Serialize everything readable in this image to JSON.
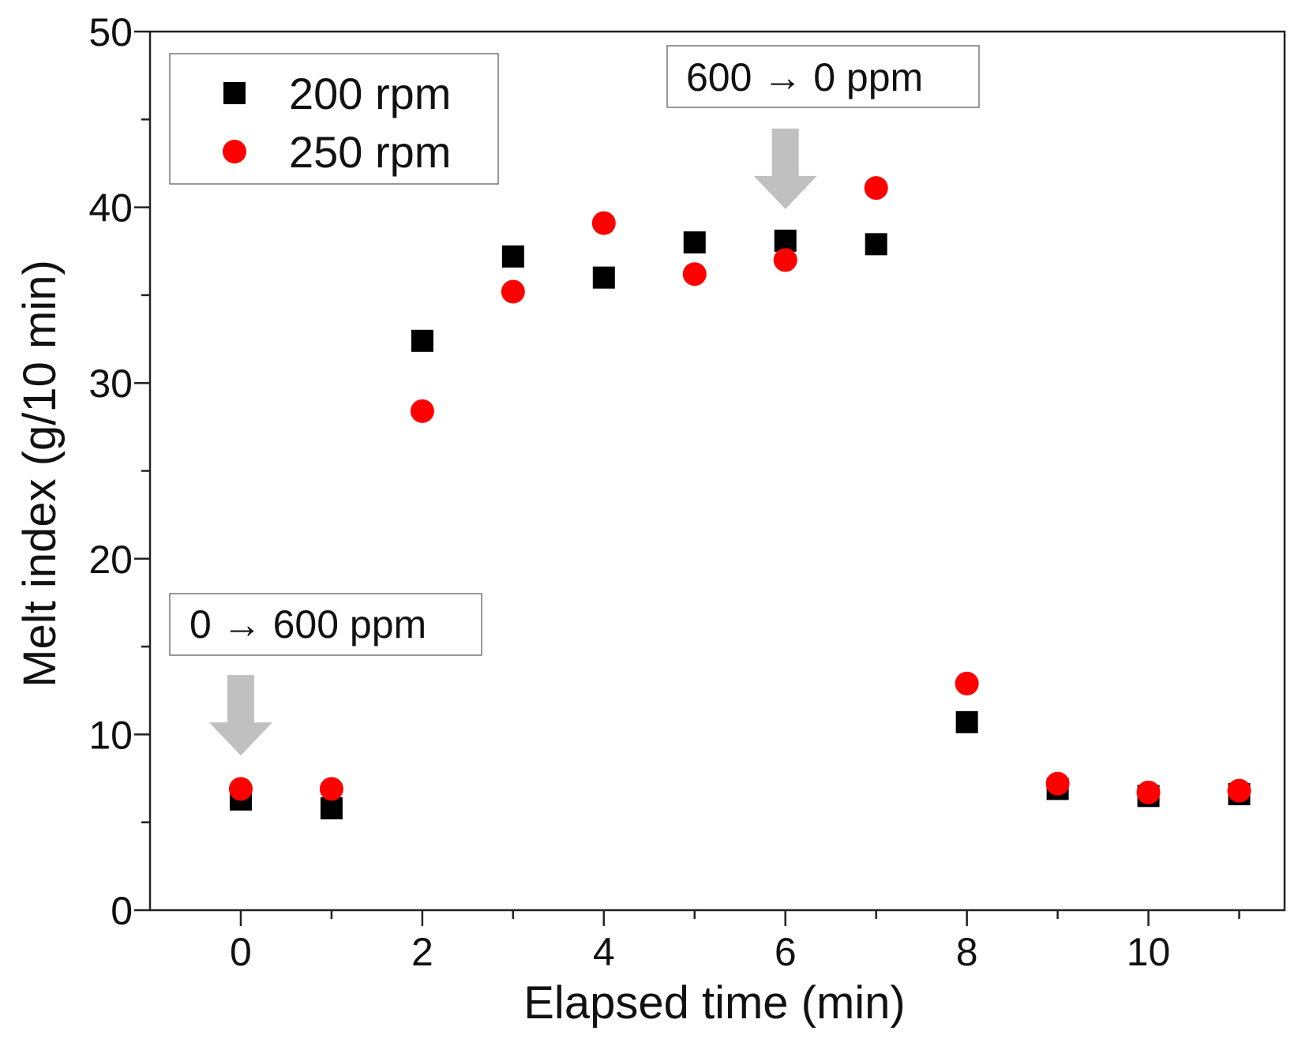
{
  "chart_data": {
    "type": "scatter",
    "title": "",
    "xlabel": "Elapsed time (min)",
    "ylabel": "Melt index (g/10 min)",
    "xlim": [
      -1,
      11.5
    ],
    "ylim": [
      0,
      50
    ],
    "xticks": [
      "0",
      "2",
      "4",
      "6",
      "8",
      "10"
    ],
    "yticks": [
      "0",
      "10",
      "20",
      "30",
      "40",
      "50"
    ],
    "grid": false,
    "legend_position": "top-left",
    "series": [
      {
        "name": "200 rpm",
        "marker": "square",
        "color": "#000000",
        "x": [
          0,
          1,
          2,
          3,
          4,
          5,
          6,
          7,
          8,
          9,
          10,
          11
        ],
        "y": [
          6.3,
          5.8,
          32.4,
          37.2,
          36.0,
          38.0,
          38.1,
          37.9,
          10.7,
          6.9,
          6.5,
          6.6
        ]
      },
      {
        "name": "250 rpm",
        "marker": "circle",
        "color": "#ff0000",
        "x": [
          0,
          1,
          2,
          3,
          4,
          5,
          6,
          7,
          8,
          9,
          10,
          11
        ],
        "y": [
          6.9,
          6.9,
          28.4,
          35.2,
          39.1,
          36.2,
          37.0,
          41.1,
          12.9,
          7.2,
          6.7,
          6.8
        ]
      }
    ],
    "annotations": [
      {
        "text": "0 → 600 ppm",
        "x": 0,
        "arrow_to_y": 8.8,
        "arrow_color": "#c0c0c0"
      },
      {
        "text": "600 → 0 ppm",
        "x": 6,
        "arrow_to_y": 39.9,
        "arrow_color": "#c0c0c0"
      }
    ]
  }
}
